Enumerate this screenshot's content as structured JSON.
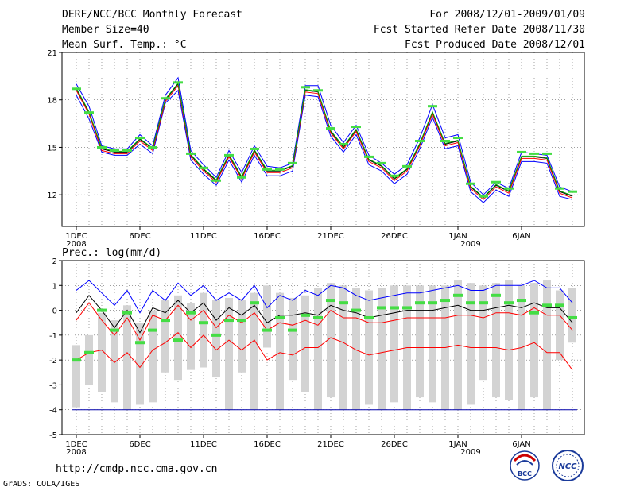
{
  "header": {
    "title": "DERF/NCC/BCC Monthly Forecast",
    "member": "Member Size=40",
    "variable": "Mean Surf. Temp.: °C",
    "period": "For 2008/12/01-2009/01/09",
    "started": "Fcst Started Refer Date 2008/11/30",
    "produced": "Fcst Produced Date 2008/12/01"
  },
  "footer": {
    "url": "http://cmdp.ncc.cma.gov.cn",
    "credit": "GrADS: COLA/IGES",
    "logo1_text": "BCC",
    "logo2_text": "NCC"
  },
  "chart_data": [
    {
      "type": "line",
      "title": "Mean Surf. Temp.: °C",
      "ylim": [
        10,
        21
      ],
      "yticks": [
        "21",
        "18",
        "15",
        "12"
      ],
      "xtick_labels": [
        "1DEC",
        "6DEC",
        "11DEC",
        "16DEC",
        "21DEC",
        "26DEC",
        "1JAN",
        "6JAN"
      ],
      "year_labels": [
        "2008",
        "2009"
      ],
      "days": 40,
      "series": [
        {
          "name": "ensemble-mean",
          "color": "#000000",
          "values": [
            18.7,
            17.2,
            14.9,
            14.7,
            14.7,
            15.5,
            14.9,
            18.0,
            19.0,
            14.5,
            13.6,
            12.9,
            14.5,
            13.1,
            14.8,
            13.5,
            13.5,
            13.8,
            18.6,
            18.5,
            16.0,
            15.0,
            16.1,
            14.2,
            13.8,
            13.0,
            13.6,
            15.2,
            17.2,
            15.2,
            15.4,
            12.5,
            11.8,
            12.6,
            12.2,
            14.4,
            14.4,
            14.3,
            12.2,
            11.9
          ]
        },
        {
          "name": "upper-envelope",
          "color": "#0000ff",
          "values": [
            19.0,
            17.6,
            15.1,
            14.9,
            14.9,
            15.8,
            15.1,
            18.3,
            19.4,
            14.8,
            13.9,
            13.1,
            14.8,
            13.4,
            15.1,
            13.8,
            13.7,
            14.0,
            18.9,
            18.9,
            16.4,
            15.3,
            16.4,
            14.5,
            14.0,
            13.3,
            13.9,
            15.6,
            17.7,
            15.6,
            15.8,
            12.8,
            12.0,
            12.8,
            12.4,
            14.7,
            14.6,
            14.5,
            12.5,
            12.2
          ]
        },
        {
          "name": "lower-envelope",
          "color": "#0000ff",
          "values": [
            18.3,
            16.8,
            14.7,
            14.5,
            14.5,
            15.2,
            14.6,
            17.8,
            18.6,
            14.2,
            13.3,
            12.6,
            14.2,
            12.8,
            14.5,
            13.2,
            13.2,
            13.5,
            18.3,
            18.2,
            15.7,
            14.7,
            15.8,
            13.9,
            13.5,
            12.7,
            13.3,
            14.9,
            16.9,
            14.9,
            15.1,
            12.2,
            11.5,
            12.3,
            11.9,
            14.1,
            14.1,
            14.0,
            11.9,
            11.7
          ]
        },
        {
          "name": "member-red",
          "color": "#ff0000",
          "values": [
            18.6,
            17.1,
            14.8,
            14.6,
            14.6,
            15.4,
            14.8,
            17.9,
            18.9,
            14.4,
            13.5,
            12.8,
            14.4,
            13.0,
            14.7,
            13.4,
            13.4,
            13.7,
            18.5,
            18.4,
            15.9,
            14.9,
            16.0,
            14.1,
            13.7,
            12.9,
            13.5,
            15.1,
            17.1,
            15.1,
            15.3,
            12.4,
            11.7,
            12.5,
            12.1,
            14.3,
            14.3,
            14.2,
            12.1,
            11.8
          ]
        },
        {
          "name": "member-green",
          "color": "#00aa00",
          "values": [
            18.75,
            17.25,
            14.95,
            14.75,
            14.75,
            15.55,
            14.95,
            18.05,
            19.05,
            14.55,
            13.65,
            12.95,
            14.55,
            13.15,
            14.85,
            13.55,
            13.55,
            13.85,
            18.65,
            18.55,
            16.05,
            15.05,
            16.15,
            14.25,
            13.85,
            13.05,
            13.65,
            15.25,
            17.25,
            15.25,
            15.45,
            12.55,
            11.85,
            12.65,
            12.25,
            14.45,
            14.45,
            14.35,
            12.25,
            11.95
          ]
        }
      ],
      "markers": [
        18.7,
        17.2,
        15.0,
        14.8,
        14.8,
        15.6,
        15.0,
        18.1,
        19.1,
        14.6,
        13.7,
        12.9,
        14.5,
        13.1,
        14.9,
        13.6,
        13.6,
        14.0,
        18.8,
        18.6,
        16.2,
        15.2,
        16.3,
        14.4,
        14.0,
        13.2,
        13.8,
        15.4,
        17.6,
        15.4,
        15.6,
        12.7,
        11.9,
        12.8,
        12.4,
        14.7,
        14.6,
        14.6,
        12.4,
        12.2
      ]
    },
    {
      "type": "box",
      "title": "Prec.: log(mm/d)",
      "ylim": [
        -5,
        2
      ],
      "yticks": [
        "2",
        "1",
        "0",
        "-1",
        "-2",
        "-3",
        "-4",
        "-5"
      ],
      "xtick_labels": [
        "1DEC",
        "6DEC",
        "11DEC",
        "16DEC",
        "21DEC",
        "26DEC",
        "1JAN",
        "6JAN"
      ],
      "year_labels": [
        "2008",
        "2009"
      ],
      "days": 40,
      "bars": [
        [
          -3.9,
          -1.4
        ],
        [
          -3.0,
          -1.0
        ],
        [
          -3.3,
          -0.1
        ],
        [
          -3.7,
          -0.4
        ],
        [
          -4.0,
          0.2
        ],
        [
          -3.8,
          -0.5
        ],
        [
          -3.7,
          0.0
        ],
        [
          -2.5,
          0.4
        ],
        [
          -2.8,
          0.6
        ],
        [
          -2.4,
          0.3
        ],
        [
          -2.3,
          0.7
        ],
        [
          -2.7,
          0.4
        ],
        [
          -4.0,
          0.5
        ],
        [
          -2.5,
          0.4
        ],
        [
          -4.0,
          0.7
        ],
        [
          -1.5,
          1.0
        ],
        [
          -4.0,
          0.7
        ],
        [
          -2.8,
          0.5
        ],
        [
          -3.3,
          0.6
        ],
        [
          -4.0,
          0.9
        ],
        [
          -3.5,
          1.1
        ],
        [
          -4.0,
          1.0
        ],
        [
          -4.0,
          0.9
        ],
        [
          -3.8,
          0.8
        ],
        [
          -4.0,
          0.9
        ],
        [
          -3.7,
          1.0
        ],
        [
          -4.0,
          1.0
        ],
        [
          -3.5,
          1.0
        ],
        [
          -3.7,
          1.0
        ],
        [
          -4.0,
          1.0
        ],
        [
          -4.0,
          1.2
        ],
        [
          -3.8,
          1.1
        ],
        [
          -2.8,
          1.0
        ],
        [
          -3.5,
          1.1
        ],
        [
          -3.6,
          1.2
        ],
        [
          -4.0,
          1.0
        ],
        [
          -3.5,
          1.1
        ],
        [
          -4.0,
          1.2
        ],
        [
          -2.0,
          0.8
        ],
        [
          -1.3,
          0.9
        ]
      ],
      "series": [
        {
          "name": "upper-90pct",
          "color": "#0000ff",
          "values": [
            0.8,
            1.2,
            0.7,
            0.2,
            0.8,
            -0.1,
            0.8,
            0.4,
            1.1,
            0.6,
            1.0,
            0.4,
            0.7,
            0.4,
            1.0,
            0.1,
            0.6,
            0.4,
            0.8,
            0.6,
            1.0,
            0.9,
            0.6,
            0.4,
            0.5,
            0.6,
            0.7,
            0.7,
            0.8,
            0.9,
            1.0,
            0.8,
            0.8,
            1.0,
            1.0,
            1.0,
            1.2,
            0.9,
            0.9,
            0.3
          ]
        },
        {
          "name": "median",
          "color": "#000000",
          "values": [
            -0.1,
            0.6,
            0.0,
            -0.7,
            0.0,
            -0.9,
            0.1,
            -0.1,
            0.4,
            -0.1,
            0.3,
            -0.4,
            0.1,
            -0.2,
            0.2,
            -0.5,
            -0.2,
            -0.2,
            -0.1,
            -0.2,
            0.2,
            0.0,
            -0.1,
            -0.3,
            -0.2,
            -0.1,
            0.0,
            0.0,
            0.0,
            0.1,
            0.2,
            0.0,
            0.0,
            0.1,
            0.2,
            0.1,
            0.3,
            0.1,
            0.1,
            -0.5
          ]
        },
        {
          "name": "lower-a",
          "color": "#ff0000",
          "values": [
            -0.4,
            0.3,
            -0.4,
            -1.0,
            -0.3,
            -1.2,
            -0.2,
            -0.4,
            0.2,
            -0.4,
            0.0,
            -0.7,
            -0.2,
            -0.5,
            -0.1,
            -0.8,
            -0.5,
            -0.6,
            -0.4,
            -0.6,
            0.0,
            -0.3,
            -0.3,
            -0.5,
            -0.5,
            -0.4,
            -0.3,
            -0.3,
            -0.3,
            -0.3,
            -0.2,
            -0.2,
            -0.3,
            -0.1,
            -0.1,
            -0.2,
            0.1,
            -0.2,
            -0.2,
            -0.8
          ]
        },
        {
          "name": "lower-b",
          "color": "#ff0000",
          "values": [
            -2.0,
            -1.7,
            -1.6,
            -2.1,
            -1.7,
            -2.3,
            -1.6,
            -1.3,
            -0.9,
            -1.5,
            -1.0,
            -1.6,
            -1.2,
            -1.6,
            -1.2,
            -2.0,
            -1.7,
            -1.8,
            -1.5,
            -1.5,
            -1.1,
            -1.3,
            -1.6,
            -1.8,
            -1.7,
            -1.6,
            -1.5,
            -1.5,
            -1.5,
            -1.5,
            -1.4,
            -1.5,
            -1.5,
            -1.5,
            -1.6,
            -1.5,
            -1.3,
            -1.7,
            -1.7,
            -2.4
          ]
        }
      ],
      "markers": [
        -2.0,
        -1.7,
        0.0,
        -0.8,
        -0.1,
        -1.3,
        -0.8,
        -0.4,
        -1.2,
        -0.1,
        -0.5,
        -1.0,
        -0.4,
        -0.4,
        0.3,
        -0.8,
        -0.3,
        -0.8,
        -0.2,
        -0.3,
        0.4,
        0.3,
        0.0,
        -0.3,
        0.1,
        0.1,
        0.1,
        0.3,
        0.3,
        0.4,
        0.6,
        0.3,
        0.3,
        0.6,
        0.3,
        0.4,
        -0.1,
        0.2,
        0.2,
        -0.3
      ],
      "floor_line": -4
    }
  ]
}
